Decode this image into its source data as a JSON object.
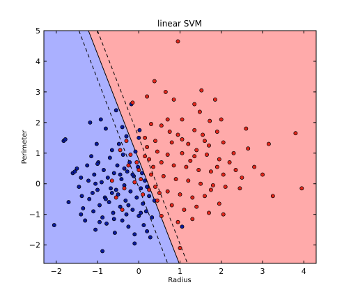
{
  "chart_data": {
    "type": "scatter",
    "title": "linear SVM",
    "xlabel": "Radius",
    "ylabel": "Perimeter",
    "xlim": [
      -2.3,
      4.3
    ],
    "ylim": [
      -2.6,
      5.0
    ],
    "xticks": [
      -2,
      -1,
      0,
      1,
      2,
      3,
      4
    ],
    "yticks": [
      -2,
      -1,
      0,
      1,
      2,
      3,
      4,
      5
    ],
    "xtick_labels": [
      "−2",
      "−1",
      "0",
      "1",
      "2",
      "3",
      "4"
    ],
    "ytick_labels": [
      "−2",
      "−1",
      "0",
      "1",
      "2",
      "3",
      "4",
      "5"
    ],
    "grid": false,
    "colors": {
      "region_blue": "#aab0ff",
      "region_red": "#ffaaaa",
      "point_blue": "#0a1a9c",
      "point_red": "#e3261b",
      "edge": "#000000"
    },
    "decision_boundary": {
      "line": [
        [
          -1.22,
          5.0
        ],
        [
          0.98,
          -2.6
        ]
      ],
      "margins": [
        [
          [
            -1.45,
            5.0
          ],
          [
            0.7,
            -2.6
          ]
        ],
        [
          [
            -1.0,
            5.0
          ],
          [
            1.18,
            -2.6
          ]
        ]
      ]
    },
    "series": [
      {
        "class": "blue",
        "points": [
          [
            -1.82,
            1.4
          ],
          [
            -1.78,
            1.45
          ],
          [
            -1.6,
            0.35
          ],
          [
            -1.55,
            0.4
          ],
          [
            -1.5,
            0.5
          ],
          [
            -1.45,
            -0.1
          ],
          [
            -1.4,
            0.2
          ],
          [
            -1.38,
            -0.4
          ],
          [
            -1.35,
            -0.8
          ],
          [
            -1.3,
            -1.2
          ],
          [
            -1.25,
            0.6
          ],
          [
            -1.22,
            0.1
          ],
          [
            -1.2,
            -0.5
          ],
          [
            -1.18,
            2.0
          ],
          [
            -1.15,
            0.9
          ],
          [
            -1.12,
            -0.3
          ],
          [
            -1.1,
            -0.9
          ],
          [
            -1.08,
            0.3
          ],
          [
            -1.05,
            -1.5
          ],
          [
            -1.02,
            1.3
          ],
          [
            -1.0,
            -0.2
          ],
          [
            -0.98,
            0.7
          ],
          [
            -0.95,
            -0.7
          ],
          [
            -0.92,
            2.1
          ],
          [
            -0.9,
            0.05
          ],
          [
            -0.88,
            -1.1
          ],
          [
            -0.85,
            0.45
          ],
          [
            -0.82,
            -0.45
          ],
          [
            -0.8,
            1.8
          ],
          [
            -0.78,
            -1.3
          ],
          [
            -0.75,
            0.2
          ],
          [
            -0.72,
            -0.6
          ],
          [
            -0.7,
            0.85
          ],
          [
            -0.68,
            -0.15
          ],
          [
            -0.65,
            1.1
          ],
          [
            -0.62,
            -0.95
          ],
          [
            -0.6,
            0.35
          ],
          [
            -0.58,
            -1.6
          ],
          [
            -0.55,
            2.4
          ],
          [
            -0.52,
            0.6
          ],
          [
            -0.5,
            -0.35
          ],
          [
            -0.48,
            1.3
          ],
          [
            -0.45,
            -0.75
          ],
          [
            -0.42,
            0.15
          ],
          [
            -0.4,
            -1.2
          ],
          [
            -0.38,
            0.95
          ],
          [
            -0.35,
            -0.05
          ],
          [
            -0.32,
            -0.55
          ],
          [
            -0.3,
            1.55
          ],
          [
            -0.28,
            0.4
          ],
          [
            -0.25,
            -1.4
          ],
          [
            -0.22,
            0.7
          ],
          [
            -0.2,
            -0.25
          ],
          [
            -0.18,
            2.6
          ],
          [
            -0.15,
            -0.85
          ],
          [
            -0.12,
            0.25
          ],
          [
            -0.1,
            -1.65
          ],
          [
            -0.08,
            1.05
          ],
          [
            -0.05,
            -0.45
          ],
          [
            -0.02,
            0.55
          ],
          [
            0.0,
            -1.05
          ],
          [
            0.02,
            1.75
          ],
          [
            0.05,
            -0.15
          ],
          [
            0.08,
            0.35
          ],
          [
            0.1,
            -0.65
          ],
          [
            0.12,
            -1.35
          ],
          [
            0.15,
            0.1
          ],
          [
            0.18,
            -0.9
          ],
          [
            0.2,
            -1.55
          ],
          [
            0.25,
            -0.4
          ],
          [
            0.28,
            -1.75
          ],
          [
            0.32,
            -1.1
          ],
          [
            -1.4,
            -1.0
          ],
          [
            -1.0,
            0.65
          ],
          [
            -0.55,
            -0.2
          ],
          [
            -0.35,
            0.5
          ],
          [
            -0.15,
            0.3
          ],
          [
            -0.65,
            -0.3
          ],
          [
            -0.25,
            -0.7
          ],
          [
            -0.8,
            -0.5
          ],
          [
            -1.05,
            0.0
          ],
          [
            -0.45,
            0.3
          ],
          [
            -0.6,
            -1.15
          ],
          [
            -0.95,
            -1.25
          ],
          [
            -0.3,
            -1.0
          ],
          [
            0.05,
            -0.95
          ],
          [
            -1.7,
            -0.6
          ],
          [
            -2.05,
            -1.35
          ],
          [
            -0.88,
            -2.2
          ],
          [
            -0.4,
            1.85
          ],
          [
            0.0,
            1.5
          ],
          [
            1.05,
            -1.4
          ],
          [
            -0.1,
            -1.95
          ],
          [
            0.2,
            -0.1
          ],
          [
            0.38,
            -0.55
          ]
        ]
      },
      {
        "class": "red",
        "points": [
          [
            0.95,
            4.65
          ],
          [
            0.38,
            3.35
          ],
          [
            0.2,
            2.85
          ],
          [
            -0.15,
            2.65
          ],
          [
            0.65,
            3.0
          ],
          [
            0.85,
            2.75
          ],
          [
            1.52,
            3.05
          ],
          [
            1.85,
            2.75
          ],
          [
            1.35,
            2.6
          ],
          [
            0.7,
            2.1
          ],
          [
            1.05,
            2.1
          ],
          [
            1.48,
            2.35
          ],
          [
            1.72,
            2.05
          ],
          [
            2.0,
            2.1
          ],
          [
            0.3,
            1.95
          ],
          [
            0.55,
            1.9
          ],
          [
            0.95,
            1.6
          ],
          [
            1.35,
            1.75
          ],
          [
            1.55,
            1.6
          ],
          [
            1.9,
            1.7
          ],
          [
            2.6,
            1.8
          ],
          [
            3.8,
            1.65
          ],
          [
            0.15,
            1.5
          ],
          [
            0.4,
            1.4
          ],
          [
            0.8,
            1.35
          ],
          [
            1.2,
            1.3
          ],
          [
            1.4,
            1.1
          ],
          [
            1.7,
            1.25
          ],
          [
            2.05,
            1.35
          ],
          [
            2.65,
            1.15
          ],
          [
            3.15,
            1.3
          ],
          [
            0.45,
            1.05
          ],
          [
            0.7,
            0.95
          ],
          [
            1.05,
            1.0
          ],
          [
            1.35,
            0.9
          ],
          [
            1.65,
            0.95
          ],
          [
            1.95,
            0.8
          ],
          [
            2.2,
            0.7
          ],
          [
            2.8,
            0.55
          ],
          [
            0.25,
            0.8
          ],
          [
            0.55,
            0.7
          ],
          [
            0.85,
            0.6
          ],
          [
            1.15,
            0.55
          ],
          [
            1.45,
            0.45
          ],
          [
            1.75,
            0.4
          ],
          [
            2.05,
            0.3
          ],
          [
            2.5,
            0.2
          ],
          [
            3.0,
            0.3
          ],
          [
            0.3,
            0.3
          ],
          [
            0.6,
            0.25
          ],
          [
            0.9,
            0.15
          ],
          [
            1.2,
            0.1
          ],
          [
            1.5,
            0.0
          ],
          [
            1.8,
            -0.05
          ],
          [
            2.1,
            -0.1
          ],
          [
            2.45,
            -0.15
          ],
          [
            3.95,
            -0.15
          ],
          [
            0.4,
            -0.1
          ],
          [
            0.7,
            -0.25
          ],
          [
            1.0,
            -0.35
          ],
          [
            1.3,
            -0.45
          ],
          [
            1.6,
            -0.4
          ],
          [
            1.95,
            -0.65
          ],
          [
            3.25,
            -0.4
          ],
          [
            0.45,
            -0.55
          ],
          [
            0.8,
            -0.7
          ],
          [
            1.1,
            -0.85
          ],
          [
            1.4,
            -0.75
          ],
          [
            1.7,
            -0.95
          ],
          [
            2.05,
            -1.0
          ],
          [
            0.55,
            -1.05
          ],
          [
            0.95,
            -1.25
          ],
          [
            1.3,
            -1.15
          ],
          [
            1.0,
            -2.1
          ],
          [
            0.15,
            0.9
          ],
          [
            -0.05,
            0.7
          ],
          [
            0.05,
            0.15
          ],
          [
            0.1,
            -0.35
          ],
          [
            -0.2,
            0.95
          ],
          [
            0.25,
            -0.2
          ],
          [
            -0.45,
            1.1
          ],
          [
            -0.35,
            -0.15
          ],
          [
            0.0,
            0.45
          ],
          [
            -0.1,
            0.05
          ],
          [
            0.35,
            0.55
          ],
          [
            1.25,
            0.75
          ],
          [
            1.05,
            1.45
          ],
          [
            1.6,
            1.4
          ],
          [
            0.75,
            1.7
          ],
          [
            1.9,
            0.55
          ],
          [
            2.3,
            1.0
          ],
          [
            0.2,
            1.2
          ],
          [
            -0.25,
            0.6
          ],
          [
            -0.55,
            -0.45
          ],
          [
            -0.3,
            1.4
          ],
          [
            -0.65,
            0.1
          ],
          [
            -0.4,
            -0.85
          ],
          [
            0.5,
            -0.3
          ],
          [
            1.75,
            -0.2
          ],
          [
            2.35,
            0.45
          ]
        ]
      }
    ]
  }
}
